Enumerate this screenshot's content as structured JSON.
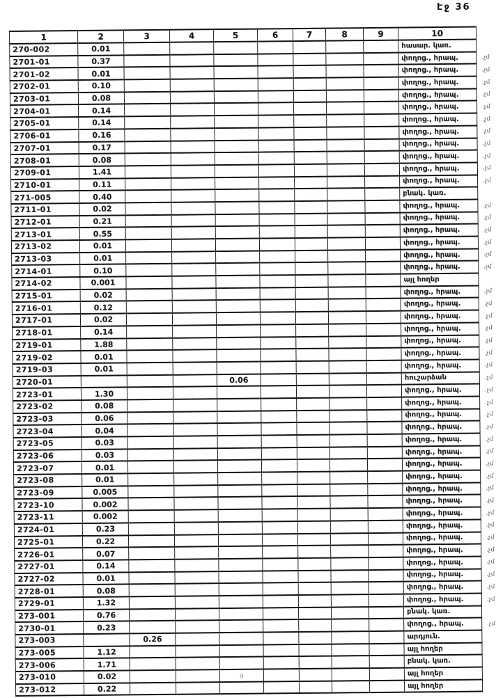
{
  "page": {
    "label": "Էջ 36"
  },
  "table": {
    "headers": [
      "1",
      "2",
      "3",
      "4",
      "5",
      "6",
      "7",
      "8",
      "9",
      "10"
    ],
    "margin_note": ".չմ",
    "rows": [
      {
        "code": "270-002",
        "c2": "0.01",
        "c10": "հասար. կառ.",
        "note": false
      },
      {
        "code": "2701-01",
        "c2": "0.37",
        "c10": "փողոց., հրապ.",
        "note": true
      },
      {
        "code": "2701-02",
        "c2": "0.01",
        "c10": "փողոց., հրապ.",
        "note": true
      },
      {
        "code": "2702-01",
        "c2": "0.10",
        "c10": "փողոց., հրապ.",
        "note": true
      },
      {
        "code": "2703-01",
        "c2": "0.08",
        "c10": "փողոց., հրապ.",
        "note": true
      },
      {
        "code": "2704-01",
        "c2": "0.14",
        "c10": "փողոց., հրապ.",
        "note": true
      },
      {
        "code": "2705-01",
        "c2": "0.14",
        "c10": "փողոց., հրապ.",
        "note": true
      },
      {
        "code": "2706-01",
        "c2": "0.16",
        "c10": "փողոց., հրապ.",
        "note": true
      },
      {
        "code": "2707-01",
        "c2": "0.17",
        "c10": "փողոց., հրապ.",
        "note": true
      },
      {
        "code": "2708-01",
        "c2": "0.08",
        "c10": "փողոց., հրապ.",
        "note": true
      },
      {
        "code": "2709-01",
        "c2": "1.41",
        "c10": "փողոց., հրապ.",
        "note": true
      },
      {
        "code": "2710-01",
        "c2": "0.11",
        "c10": "փողոց., հրապ.",
        "note": true
      },
      {
        "code": "271-005",
        "c2": "0.40",
        "c10": "բնակ. կառ.",
        "note": false
      },
      {
        "code": "2711-01",
        "c2": "0.02",
        "c10": "փողոց., հրապ.",
        "note": true
      },
      {
        "code": "2712-01",
        "c2": "0.21",
        "c10": "փողոց., հրապ.",
        "note": true
      },
      {
        "code": "2713-01",
        "c2": "0.55",
        "c10": "փողոց., հրապ.",
        "note": true
      },
      {
        "code": "2713-02",
        "c2": "0.01",
        "c10": "փողոց., հրապ.",
        "note": true
      },
      {
        "code": "2713-03",
        "c2": "0.01",
        "c10": "փողոց., հրապ.",
        "note": true
      },
      {
        "code": "2714-01",
        "c2": "0.10",
        "c10": "փողոց., հրապ.",
        "note": true
      },
      {
        "code": "2714-02",
        "c2": "0.001",
        "c10": "այլ հողեր",
        "note": false
      },
      {
        "code": "2715-01",
        "c2": "0.02",
        "c10": "փողոց., հրապ.",
        "note": true
      },
      {
        "code": "2716-01",
        "c2": "0.12",
        "c10": "փողոց., հրապ.",
        "note": true
      },
      {
        "code": "2717-01",
        "c2": "0.02",
        "c10": "փողոց., հրապ.",
        "note": true
      },
      {
        "code": "2718-01",
        "c2": "0.14",
        "c10": "փողոց., հրապ.",
        "note": true
      },
      {
        "code": "2719-01",
        "c2": "1.88",
        "c10": "փողոց., հրապ.",
        "note": true
      },
      {
        "code": "2719-02",
        "c2": "0.01",
        "c10": "փողոց., հրապ.",
        "note": true
      },
      {
        "code": "2719-03",
        "c2": "0.01",
        "c10": "փողոց., հրապ.",
        "note": true
      },
      {
        "code": "2720-01",
        "c5": "0.06",
        "c10": "հուշարձան",
        "note": true
      },
      {
        "code": "2723-01",
        "c2": "1.30",
        "c10": "փողոց., հրապ.",
        "note": true
      },
      {
        "code": "2723-02",
        "c2": "0.08",
        "c10": "փողոց., հրապ.",
        "note": true
      },
      {
        "code": "2723-03",
        "c2": "0.06",
        "c10": "փողոց., հրապ.",
        "note": true
      },
      {
        "code": "2723-04",
        "c2": "0.04",
        "c10": "փողոց., հրապ.",
        "note": true
      },
      {
        "code": "2723-05",
        "c2": "0.03",
        "c10": "փողոց., հրապ.",
        "note": true
      },
      {
        "code": "2723-06",
        "c2": "0.03",
        "c10": "փողոց., հրապ.",
        "note": true
      },
      {
        "code": "2723-07",
        "c2": "0.01",
        "c10": "փողոց., հրապ.",
        "note": true
      },
      {
        "code": "2723-08",
        "c2": "0.01",
        "c10": "փողոց., հրապ.",
        "note": true
      },
      {
        "code": "2723-09",
        "c2": "0.005",
        "c10": "փողոց., հրապ.",
        "note": true
      },
      {
        "code": "2723-10",
        "c2": "0.002",
        "c10": "փողոց., հրապ.",
        "note": true
      },
      {
        "code": "2723-11",
        "c2": "0.002",
        "c10": "փողոց., հրապ.",
        "note": true
      },
      {
        "code": "2724-01",
        "c2": "0.23",
        "c10": "փողոց., հրապ.",
        "note": true
      },
      {
        "code": "2725-01",
        "c2": "0.22",
        "c10": "փողոց., հրապ.",
        "note": true
      },
      {
        "code": "2726-01",
        "c2": "0.07",
        "c10": "փողոց., հրապ.",
        "note": true
      },
      {
        "code": "2727-01",
        "c2": "0.14",
        "c10": "փողոց., հրապ.",
        "note": true
      },
      {
        "code": "2727-02",
        "c2": "0.01",
        "c10": "փողոց., հրապ.",
        "note": true
      },
      {
        "code": "2728-01",
        "c2": "0.08",
        "c10": "փողոց., հրապ.",
        "note": true
      },
      {
        "code": "2729-01",
        "c2": "1.32",
        "c10": "փողոց., հրապ.",
        "note": true
      },
      {
        "code": "273-001",
        "c2": "0.76",
        "c10": "բնակ. կառ.",
        "note": false
      },
      {
        "code": "2730-01",
        "c2": "0.23",
        "c10": "փողոց., հրապ.",
        "note": true
      },
      {
        "code": "273-003",
        "c3": "0.26",
        "c10": "արդյուն.",
        "note": false
      },
      {
        "code": "273-005",
        "c2": "1.12",
        "c10": "այլ հողեր",
        "note": false
      },
      {
        "code": "273-006",
        "c2": "1.71",
        "c10": "բնակ. կառ.",
        "note": false
      },
      {
        "code": "273-010",
        "c2": "0.02",
        "c10": "այլ հողեր",
        "note": false,
        "artifact": "ց"
      },
      {
        "code": "273-012",
        "c2": "0.22",
        "c10": "այլ հողեր",
        "note": false
      }
    ]
  }
}
